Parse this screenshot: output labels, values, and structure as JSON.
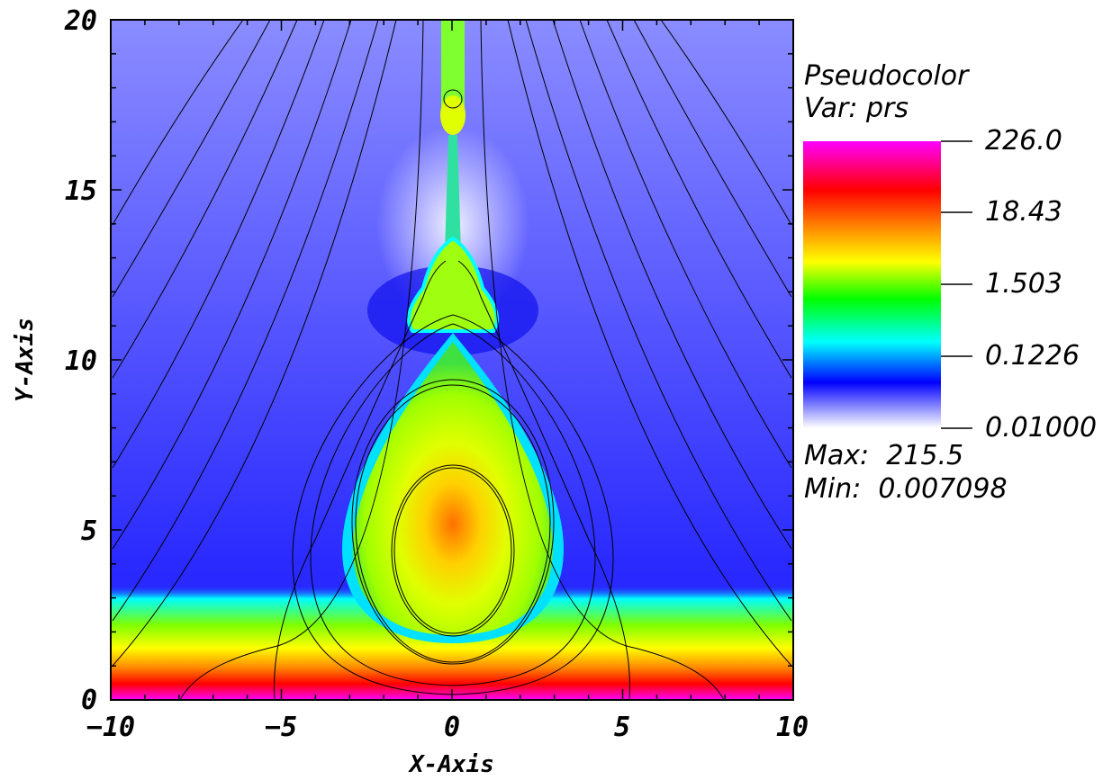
{
  "chart_data": {
    "type": "heatmap",
    "xlabel": "X-Axis",
    "ylabel": "Y-Axis",
    "xlim": [
      -10,
      10
    ],
    "ylim": [
      0,
      20
    ],
    "xticks": [
      -10,
      -5,
      0,
      5,
      10
    ],
    "xtick_labels": [
      "−10",
      "−5",
      "0",
      "5",
      "10"
    ],
    "yticks": [
      0,
      5,
      10,
      15,
      20
    ],
    "ytick_labels": [
      "0",
      "5",
      "10",
      "15",
      "20"
    ],
    "grid": false,
    "legend": {
      "placement": "right",
      "title_line1": "Pseudocolor",
      "title_line2": "Var: prs",
      "scale": "log",
      "levels": [
        "226.0",
        "18.43",
        "1.503",
        "0.1226",
        "0.01000"
      ],
      "max_text": "Max:  215.5",
      "min_text": "Min:  0.007098",
      "colors": [
        "#ff00ff",
        "#ff0000",
        "#ff8800",
        "#ffff00",
        "#00ff00",
        "#00ffff",
        "#0000ff",
        "#ffffff"
      ]
    },
    "overlay": "magnetic field lines (black contours)"
  }
}
